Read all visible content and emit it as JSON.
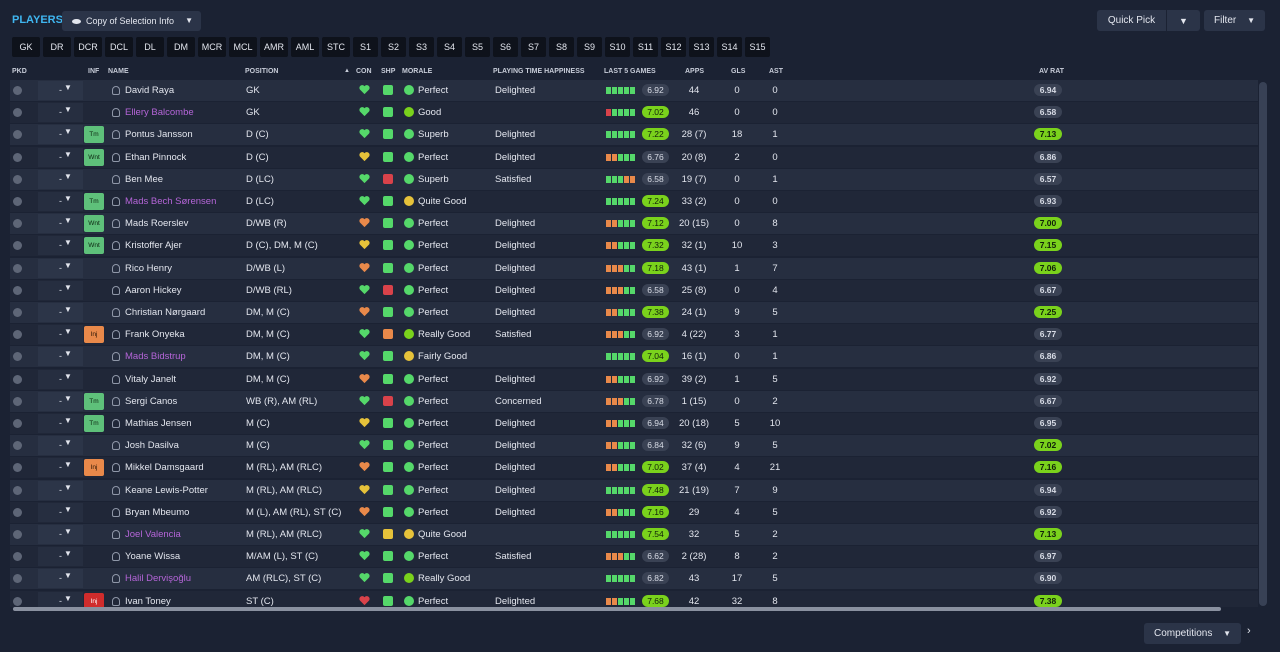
{
  "title": "PLAYERS",
  "view_button": "Copy of Selection Info",
  "quick_pick": "Quick Pick",
  "filter": "Filter",
  "competitions": "Competitions",
  "positions": [
    "GK",
    "DR",
    "DCR",
    "DCL",
    "DL",
    "DM",
    "MCR",
    "MCL",
    "AMR",
    "AML",
    "STC",
    "S1",
    "S2",
    "S3",
    "S4",
    "S5",
    "S6",
    "S7",
    "S8",
    "S9",
    "S10",
    "S11",
    "S12",
    "S13",
    "S14",
    "S15"
  ],
  "headers": {
    "pkd": "PKD",
    "inf": "INF",
    "name": "NAME",
    "position": "POSITION",
    "con": "CON",
    "shp": "SHP",
    "morale": "MORALE",
    "pth": "PLAYING TIME HAPPINESS",
    "last5": "LAST 5 GAMES",
    "apps": "APPS",
    "gls": "GLS",
    "ast": "AST",
    "avrat": "AV RAT"
  },
  "colors": {
    "green": "#55d86a",
    "yellow": "#e6c23a",
    "orange": "#e9894a",
    "red": "#d9424a",
    "lime": "#7ad21c",
    "accent": "#3fb6f0",
    "loan": "#b565d8"
  },
  "players": [
    {
      "name": "David Raya",
      "position": "GK",
      "inf": "",
      "loan": false,
      "con": "green",
      "shp": "green",
      "morale": "Perfect",
      "mor": "green",
      "pth": "Delighted",
      "l5": "ggggg",
      "avg": "6.92",
      "apps": "44",
      "gls": "0",
      "ast": "0",
      "avrat": "6.94"
    },
    {
      "name": "Ellery Balcombe",
      "position": "GK",
      "inf": "",
      "loan": true,
      "con": "green",
      "shp": "green",
      "morale": "Good",
      "mor": "lime",
      "pth": "",
      "l5": "rgggg",
      "avg": "7.02",
      "apps": "46",
      "gls": "0",
      "ast": "0",
      "avrat": "6.58"
    },
    {
      "name": "Pontus Jansson",
      "position": "D (C)",
      "inf": "Tm",
      "loan": false,
      "con": "green",
      "shp": "green",
      "morale": "Superb",
      "mor": "green",
      "pth": "Delighted",
      "l5": "ggggg",
      "avg": "7.22",
      "apps": "28 (7)",
      "gls": "18",
      "ast": "1",
      "avrat": "7.13"
    },
    {
      "name": "Ethan Pinnock",
      "position": "D (C)",
      "inf": "Wnt",
      "loan": false,
      "con": "yellow",
      "shp": "green",
      "morale": "Perfect",
      "mor": "green",
      "pth": "Delighted",
      "l5": "ooggg",
      "avg": "6.76",
      "apps": "20 (8)",
      "gls": "2",
      "ast": "0",
      "avrat": "6.86"
    },
    {
      "name": "Ben Mee",
      "position": "D (LC)",
      "inf": "",
      "loan": false,
      "con": "green",
      "shp": "red",
      "morale": "Superb",
      "mor": "green",
      "pth": "Satisfied",
      "l5": "gggoo",
      "avg": "6.58",
      "apps": "19 (7)",
      "gls": "0",
      "ast": "1",
      "avrat": "6.57"
    },
    {
      "name": "Mads Bech Sørensen",
      "position": "D (LC)",
      "inf": "Tm",
      "loan": true,
      "con": "green",
      "shp": "green",
      "morale": "Quite Good",
      "mor": "yellow",
      "pth": "",
      "l5": "ggggg",
      "avg": "7.24",
      "apps": "33 (2)",
      "gls": "0",
      "ast": "0",
      "avrat": "6.93"
    },
    {
      "name": "Mads Roerslev",
      "position": "D/WB (R)",
      "inf": "Wnt",
      "loan": false,
      "con": "orange",
      "shp": "green",
      "morale": "Perfect",
      "mor": "green",
      "pth": "Delighted",
      "l5": "ooggg",
      "avg": "7.12",
      "apps": "20 (15)",
      "gls": "0",
      "ast": "8",
      "avrat": "7.00"
    },
    {
      "name": "Kristoffer Ajer",
      "position": "D (C), DM, M (C)",
      "inf": "Wnt",
      "loan": false,
      "con": "yellow",
      "shp": "green",
      "morale": "Perfect",
      "mor": "green",
      "pth": "Delighted",
      "l5": "ooggg",
      "avg": "7.32",
      "apps": "32 (1)",
      "gls": "10",
      "ast": "3",
      "avrat": "7.15"
    },
    {
      "name": "Rico Henry",
      "position": "D/WB (L)",
      "inf": "",
      "loan": false,
      "con": "orange",
      "shp": "green",
      "morale": "Perfect",
      "mor": "green",
      "pth": "Delighted",
      "l5": "ooogg",
      "avg": "7.18",
      "apps": "43 (1)",
      "gls": "1",
      "ast": "7",
      "avrat": "7.06"
    },
    {
      "name": "Aaron Hickey",
      "position": "D/WB (RL)",
      "inf": "",
      "loan": false,
      "con": "green",
      "shp": "red",
      "morale": "Perfect",
      "mor": "green",
      "pth": "Delighted",
      "l5": "ooogg",
      "avg": "6.58",
      "apps": "25 (8)",
      "gls": "0",
      "ast": "4",
      "avrat": "6.67"
    },
    {
      "name": "Christian Nørgaard",
      "position": "DM, M (C)",
      "inf": "",
      "loan": false,
      "con": "orange",
      "shp": "green",
      "morale": "Perfect",
      "mor": "green",
      "pth": "Delighted",
      "l5": "ooggg",
      "avg": "7.38",
      "apps": "24 (1)",
      "gls": "9",
      "ast": "5",
      "avrat": "7.25"
    },
    {
      "name": "Frank Onyeka",
      "position": "DM, M (C)",
      "inf": "Inj",
      "loan": false,
      "con": "green",
      "shp": "orange",
      "morale": "Really Good",
      "mor": "lime",
      "pth": "Satisfied",
      "l5": "ooogg",
      "avg": "6.92",
      "apps": "4 (22)",
      "gls": "3",
      "ast": "1",
      "avrat": "6.77"
    },
    {
      "name": "Mads Bidstrup",
      "position": "DM, M (C)",
      "inf": "",
      "loan": true,
      "con": "green",
      "shp": "green",
      "morale": "Fairly Good",
      "mor": "yellow",
      "pth": "",
      "l5": "ggggg",
      "avg": "7.04",
      "apps": "16 (1)",
      "gls": "0",
      "ast": "1",
      "avrat": "6.86"
    },
    {
      "name": "Vitaly Janelt",
      "position": "DM, M (C)",
      "inf": "",
      "loan": false,
      "con": "orange",
      "shp": "green",
      "morale": "Perfect",
      "mor": "green",
      "pth": "Delighted",
      "l5": "ooggg",
      "avg": "6.92",
      "apps": "39 (2)",
      "gls": "1",
      "ast": "5",
      "avrat": "6.92"
    },
    {
      "name": "Sergi Canos",
      "position": "WB (R), AM (RL)",
      "inf": "Tm",
      "loan": false,
      "con": "green",
      "shp": "red",
      "morale": "Perfect",
      "mor": "green",
      "pth": "Concerned",
      "l5": "ooogg",
      "avg": "6.78",
      "apps": "1 (15)",
      "gls": "0",
      "ast": "2",
      "avrat": "6.67"
    },
    {
      "name": "Mathias Jensen",
      "position": "M (C)",
      "inf": "Tm",
      "loan": false,
      "con": "yellow",
      "shp": "green",
      "morale": "Perfect",
      "mor": "green",
      "pth": "Delighted",
      "l5": "ooggg",
      "avg": "6.94",
      "apps": "20 (18)",
      "gls": "5",
      "ast": "10",
      "avrat": "6.95"
    },
    {
      "name": "Josh Dasilva",
      "position": "M (C)",
      "inf": "",
      "loan": false,
      "con": "green",
      "shp": "green",
      "morale": "Perfect",
      "mor": "green",
      "pth": "Delighted",
      "l5": "ooggg",
      "avg": "6.84",
      "apps": "32 (6)",
      "gls": "9",
      "ast": "5",
      "avrat": "7.02"
    },
    {
      "name": "Mikkel Damsgaard",
      "position": "M (RL), AM (RLC)",
      "inf": "Inj",
      "loan": false,
      "con": "orange",
      "shp": "green",
      "morale": "Perfect",
      "mor": "green",
      "pth": "Delighted",
      "l5": "ooggg",
      "avg": "7.02",
      "apps": "37 (4)",
      "gls": "4",
      "ast": "21",
      "avrat": "7.16"
    },
    {
      "name": "Keane Lewis-Potter",
      "position": "M (RL), AM (RLC)",
      "inf": "",
      "loan": false,
      "con": "yellow",
      "shp": "green",
      "morale": "Perfect",
      "mor": "green",
      "pth": "Delighted",
      "l5": "ggggg",
      "avg": "7.48",
      "apps": "21 (19)",
      "gls": "7",
      "ast": "9",
      "avrat": "6.94"
    },
    {
      "name": "Bryan Mbeumo",
      "position": "M (L), AM (RL), ST (C)",
      "inf": "",
      "loan": false,
      "con": "orange",
      "shp": "green",
      "morale": "Perfect",
      "mor": "green",
      "pth": "Delighted",
      "l5": "ooggg",
      "avg": "7.16",
      "apps": "29",
      "gls": "4",
      "ast": "5",
      "avrat": "6.92"
    },
    {
      "name": "Joel Valencia",
      "position": "M (RL), AM (RLC)",
      "inf": "",
      "loan": true,
      "con": "green",
      "shp": "yellow",
      "morale": "Quite Good",
      "mor": "yellow",
      "pth": "",
      "l5": "ggggg",
      "avg": "7.54",
      "apps": "32",
      "gls": "5",
      "ast": "2",
      "avrat": "7.13"
    },
    {
      "name": "Yoane Wissa",
      "position": "M/AM (L), ST (C)",
      "inf": "",
      "loan": false,
      "con": "green",
      "shp": "green",
      "morale": "Perfect",
      "mor": "green",
      "pth": "Satisfied",
      "l5": "ooogg",
      "avg": "6.62",
      "apps": "2 (28)",
      "gls": "8",
      "ast": "2",
      "avrat": "6.97"
    },
    {
      "name": "Halil Dervişoğlu",
      "position": "AM (RLC), ST (C)",
      "inf": "",
      "loan": true,
      "con": "green",
      "shp": "green",
      "morale": "Really Good",
      "mor": "lime",
      "pth": "",
      "l5": "ggggg",
      "avg": "6.82",
      "apps": "43",
      "gls": "17",
      "ast": "5",
      "avrat": "6.90"
    },
    {
      "name": "Ivan Toney",
      "position": "ST (C)",
      "inf": "Inj",
      "loan": false,
      "con": "red",
      "shp": "green",
      "morale": "Perfect",
      "mor": "green",
      "pth": "Delighted",
      "l5": "ooggg",
      "avg": "7.68",
      "apps": "42",
      "gls": "32",
      "ast": "8",
      "avrat": "7.38"
    }
  ]
}
